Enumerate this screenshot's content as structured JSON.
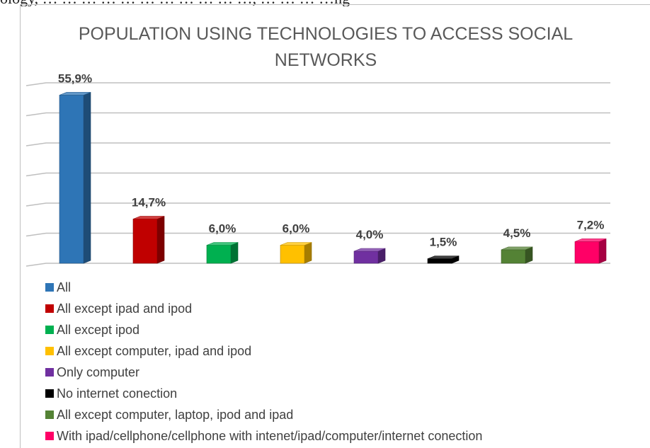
{
  "header_strip": "ology, … … … … … … … … … … …, … … … …ng",
  "chart_data": {
    "type": "bar",
    "title": "POPULATION USING TECHNOLOGIES TO ACCESS SOCIAL NETWORKS",
    "xlabel": "",
    "ylabel": "",
    "ylim": [
      0,
      60
    ],
    "grid": true,
    "legend_position": "bottom-left",
    "style": "3d-columns",
    "series": [
      {
        "name": "All",
        "value": 55.9,
        "label": "55,9%",
        "color": "#2e75b6"
      },
      {
        "name": "All except ipad and  ipod",
        "value": 14.7,
        "label": "14,7%",
        "color": "#c00000"
      },
      {
        "name": "All except ipod",
        "value": 6.0,
        "label": "6,0%",
        "color": "#00b050"
      },
      {
        "name": "All except computer, ipad and ipod",
        "value": 6.0,
        "label": "6,0%",
        "color": "#ffc000"
      },
      {
        "name": "Only computer",
        "value": 4.0,
        "label": "4,0%",
        "color": "#7030a0"
      },
      {
        "name": "No internet conection",
        "value": 1.5,
        "label": "1,5%",
        "color": "#000000"
      },
      {
        "name": "All except computer, laptop, ipod and ipad",
        "value": 4.5,
        "label": "4,5%",
        "color": "#548235"
      },
      {
        "name": "With ipad/cellphone/cellphone with intenet/ipad/computer/internet conection",
        "value": 7.2,
        "label": "7,2%",
        "color": "#ff0066"
      }
    ]
  }
}
